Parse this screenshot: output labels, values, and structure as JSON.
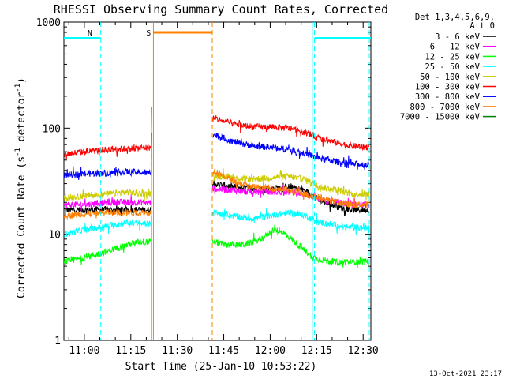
{
  "chart_data": {
    "type": "line",
    "title": "RHESSI Observing Summary Count Rates, Corrected",
    "xlabel": "Start Time (25-Jan-10 10:53:22)",
    "ylabel_main": "Corrected Count Rate (s",
    "ylabel_sup1": "-1",
    "ylabel_mid": " detector",
    "ylabel_sup2": "-1",
    "ylabel_end": ")",
    "yscale": "log",
    "ylim": [
      1,
      1000
    ],
    "xlim_minutes": [
      653.4,
      752.5
    ],
    "x_ticks": [
      {
        "label": "11:00",
        "minutes": 660
      },
      {
        "label": "11:15",
        "minutes": 675
      },
      {
        "label": "11:30",
        "minutes": 690
      },
      {
        "label": "11:45",
        "minutes": 705
      },
      {
        "label": "12:00",
        "minutes": 720
      },
      {
        "label": "12:15",
        "minutes": 735
      },
      {
        "label": "12:30",
        "minutes": 750
      }
    ],
    "y_ticks": [
      {
        "label": "1",
        "value": 1
      },
      {
        "label": "10",
        "value": 10
      },
      {
        "label": "100",
        "value": 100
      },
      {
        "label": "1000",
        "value": 1000
      }
    ],
    "legend_header": [
      "Det 1,3,4,5,6,9,",
      "Att 0"
    ],
    "data_gap_minutes": [
      682.3,
      701.3
    ],
    "flare_spike_minutes": 681.7,
    "series": [
      {
        "name": "3 - 6 keV",
        "color": "#000000",
        "x": [
          653.5,
          660,
          668,
          674,
          678,
          681.6,
          701.4,
          708,
          714,
          720,
          726,
          731,
          736,
          742,
          746,
          752
        ],
        "y": [
          17,
          17,
          17,
          17,
          17,
          17,
          30,
          28,
          27,
          27,
          28,
          26,
          21,
          18,
          17,
          17
        ]
      },
      {
        "name": "6 - 12 keV",
        "color": "#ff00ff",
        "x": [
          653.5,
          660,
          668,
          674,
          678,
          681.6,
          701.4,
          708,
          714,
          720,
          726,
          731,
          736,
          742,
          746,
          752
        ],
        "y": [
          19,
          19,
          20,
          20,
          20,
          20,
          27,
          26,
          25,
          25,
          25,
          24,
          21,
          20,
          19,
          19
        ]
      },
      {
        "name": "12 - 25 keV",
        "color": "#00ff00",
        "x": [
          653.5,
          660,
          668,
          674,
          678,
          681.6,
          701.4,
          706,
          712,
          717,
          721,
          724,
          729,
          734,
          740,
          746,
          752
        ],
        "y": [
          5.5,
          6,
          7,
          8,
          8.5,
          8.5,
          8.5,
          8,
          8,
          9,
          11,
          10.5,
          8,
          6,
          5.5,
          5.5,
          5.5
        ]
      },
      {
        "name": "25 - 50 keV",
        "color": "#00ffff",
        "x": [
          653.5,
          660,
          668,
          674,
          678,
          681.6,
          701.4,
          708,
          714,
          720,
          726,
          731,
          736,
          742,
          746,
          752
        ],
        "y": [
          10,
          11,
          12,
          13,
          12.5,
          12.5,
          16,
          15,
          14,
          15,
          16,
          15,
          13,
          12,
          11.5,
          11.5
        ]
      },
      {
        "name": "50 - 100 keV",
        "color": "#cccc00",
        "x": [
          653.5,
          660,
          668,
          674,
          678,
          681.6,
          701.4,
          708,
          714,
          720,
          726,
          731,
          736,
          742,
          746,
          752
        ],
        "y": [
          22,
          23,
          24,
          25,
          24,
          24,
          36,
          34,
          33,
          34,
          35,
          33,
          28,
          26,
          24,
          24
        ]
      },
      {
        "name": "100 - 300 keV",
        "color": "#ff0000",
        "x": [
          653.5,
          660,
          668,
          674,
          678,
          681.6,
          701.4,
          708,
          714,
          720,
          726,
          731,
          736,
          742,
          746,
          752
        ],
        "y": [
          57,
          60,
          63,
          64,
          65,
          66,
          125,
          110,
          103,
          103,
          100,
          92,
          80,
          72,
          68,
          66
        ]
      },
      {
        "name": "300 - 800 keV",
        "color": "#0000ff",
        "x": [
          653.5,
          660,
          668,
          674,
          678,
          681.6,
          701.4,
          708,
          714,
          720,
          726,
          731,
          736,
          742,
          746,
          752
        ],
        "y": [
          36,
          37,
          38,
          39,
          38,
          38,
          88,
          75,
          68,
          66,
          63,
          58,
          52,
          48,
          46,
          45
        ]
      },
      {
        "name": "800 - 7000 keV",
        "color": "#ff8000",
        "x": [
          653.5,
          660,
          668,
          674,
          678,
          681.6,
          701.4,
          708,
          714,
          720,
          726,
          731,
          736,
          742,
          746,
          752
        ],
        "y": [
          15,
          15.5,
          16,
          16,
          16,
          16,
          40,
          32,
          28,
          27,
          26,
          24,
          22,
          20,
          19,
          19
        ]
      },
      {
        "name": "7000 - 15000 keV",
        "color": "#008000",
        "x": [],
        "y": []
      }
    ],
    "annotations": [
      {
        "label": "N",
        "color": "#00ffff",
        "x_minutes": 660.5,
        "note": "night marker bar"
      },
      {
        "label": "S",
        "color": "#ff8000",
        "x_minutes": 681.5,
        "note": "SAA marker bar"
      }
    ],
    "night_bars": [
      [
        653.4,
        665.3
      ],
      [
        734.3,
        752.5
      ]
    ],
    "saa_bar": [
      682.3,
      701.3
    ],
    "night_lines": [
      665.3,
      734.3,
      752
    ],
    "night_line_solid": [
      653.8,
      733.6
    ],
    "saa_lines_dashed": [
      701.3
    ],
    "saa_line_solid": [
      682.3
    ]
  },
  "footer": {
    "date": "13-Oct-2021 23:17"
  }
}
